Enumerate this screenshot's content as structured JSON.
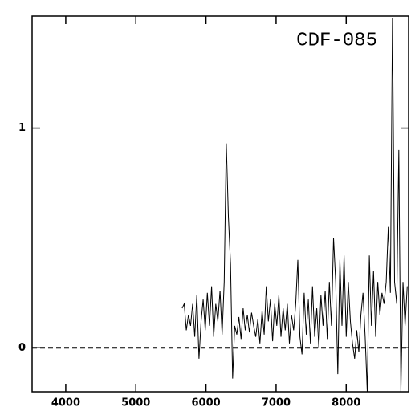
{
  "chart_data": {
    "type": "line",
    "label": "CDF-085",
    "color": "#000000",
    "x": [
      5660,
      5690,
      5720,
      5750,
      5780,
      5810,
      5840,
      5870,
      5900,
      5930,
      5960,
      5990,
      6020,
      6050,
      6080,
      6110,
      6140,
      6170,
      6200,
      6230,
      6260,
      6290,
      6320,
      6350,
      6380,
      6410,
      6440,
      6470,
      6500,
      6530,
      6560,
      6590,
      6620,
      6650,
      6680,
      6710,
      6740,
      6770,
      6800,
      6830,
      6860,
      6890,
      6920,
      6950,
      6980,
      7010,
      7040,
      7070,
      7100,
      7130,
      7160,
      7190,
      7220,
      7250,
      7280,
      7310,
      7340,
      7370,
      7400,
      7430,
      7460,
      7490,
      7520,
      7550,
      7580,
      7610,
      7640,
      7670,
      7700,
      7730,
      7760,
      7790,
      7820,
      7850,
      7880,
      7910,
      7940,
      7970,
      8000,
      8030,
      8060,
      8090,
      8120,
      8150,
      8180,
      8210,
      8240,
      8270,
      8300,
      8330,
      8360,
      8390,
      8420,
      8450,
      8480,
      8510,
      8540,
      8570,
      8600,
      8630,
      8660,
      8690,
      8720,
      8750,
      8780,
      8810,
      8840,
      8870
    ],
    "values": [
      0.18,
      0.2,
      0.08,
      0.15,
      0.1,
      0.2,
      0.05,
      0.24,
      -0.05,
      0.12,
      0.22,
      0.08,
      0.25,
      0.1,
      0.28,
      0.05,
      0.2,
      0.12,
      0.26,
      0.06,
      0.3,
      0.93,
      0.6,
      0.38,
      -0.14,
      0.1,
      0.06,
      0.14,
      0.04,
      0.18,
      0.08,
      0.15,
      0.07,
      0.16,
      0.1,
      0.05,
      0.13,
      0.02,
      0.17,
      0.06,
      0.28,
      0.12,
      0.22,
      0.03,
      0.2,
      0.1,
      0.24,
      0.05,
      0.18,
      0.08,
      0.2,
      0.02,
      0.15,
      0.08,
      0.2,
      0.4,
      0.05,
      -0.03,
      0.25,
      0.06,
      0.22,
      0.02,
      0.28,
      0.05,
      0.18,
      0.0,
      0.24,
      0.1,
      0.26,
      0.04,
      0.3,
      0.1,
      0.5,
      0.3,
      -0.12,
      0.4,
      0.1,
      0.42,
      0.05,
      0.3,
      0.12,
      0.02,
      -0.05,
      0.08,
      -0.02,
      0.15,
      0.25,
      0.05,
      -0.2,
      0.42,
      0.1,
      0.35,
      0.05,
      0.3,
      0.15,
      0.25,
      0.2,
      0.3,
      0.55,
      0.25,
      1.5,
      0.3,
      0.2,
      0.9,
      -0.2,
      0.3,
      0.1,
      0.28
    ],
    "reference_line": 0,
    "xlim": [
      3520,
      8890
    ],
    "ylim": [
      -0.2,
      1.51
    ],
    "xticks": [
      4000,
      5000,
      6000,
      7000,
      8000
    ],
    "yticks": [
      0,
      1
    ]
  }
}
